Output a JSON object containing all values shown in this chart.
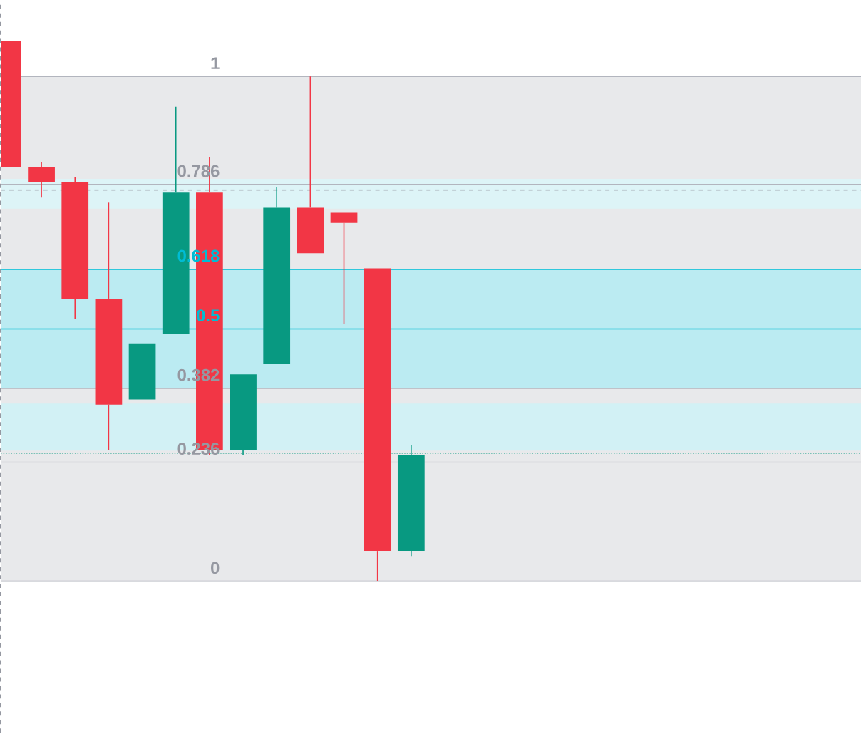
{
  "chart_data": {
    "type": "candlestick",
    "categories": [
      null,
      null,
      null,
      null,
      null,
      null,
      null,
      null,
      null,
      null,
      null,
      null,
      null
    ],
    "ohlc": [
      [
        1.07,
        1.07,
        0.82,
        0.82
      ],
      [
        0.82,
        0.83,
        0.76,
        0.79
      ],
      [
        0.79,
        0.8,
        0.52,
        0.56
      ],
      [
        0.56,
        0.75,
        0.26,
        0.35
      ],
      [
        0.36,
        0.47,
        0.36,
        0.47
      ],
      [
        0.49,
        0.94,
        0.49,
        0.77
      ],
      [
        0.77,
        0.84,
        0.25,
        0.26
      ],
      [
        0.26,
        0.41,
        0.25,
        0.41
      ],
      [
        0.43,
        0.78,
        0.43,
        0.74
      ],
      [
        0.74,
        1.0,
        0.65,
        0.65
      ],
      [
        0.73,
        0.73,
        0.51,
        0.71
      ],
      [
        0.62,
        0.62,
        0.0,
        0.06
      ],
      [
        0.06,
        0.27,
        0.05,
        0.25
      ]
    ],
    "colors": [
      "#f23645",
      "#f23645",
      "#f23645",
      "#f23645",
      "#089981",
      "#089981",
      "#f23645",
      "#089981",
      "#089981",
      "#f23645",
      "#f23645",
      "#f23645",
      "#089981"
    ],
    "ylim": [
      -0.3,
      1.15
    ],
    "yticks": [
      0,
      0.236,
      0.382,
      0.5,
      0.618,
      0.786,
      1
    ],
    "tick_labels": "y",
    "bands": [
      {
        "axis": "y",
        "from": 0,
        "to": 1,
        "color": "#e8e9eb"
      },
      {
        "axis": "y",
        "from": 0.382,
        "to": 0.618,
        "color": "#bbebf2"
      },
      {
        "axis": "y",
        "from": 0.738,
        "to": 0.797,
        "color": "#ddf4f7"
      },
      {
        "axis": "y",
        "from": 0.259,
        "to": 0.352,
        "color": "#d2f1f5"
      }
    ],
    "ref_lines": [
      {
        "axis": "y",
        "value": 1,
        "color": "#b2b5be"
      },
      {
        "axis": "y",
        "value": 0.786,
        "color": "#b2b5be"
      },
      {
        "axis": "y",
        "value": 0.618,
        "color": "#00bcd4"
      },
      {
        "axis": "y",
        "value": 0.5,
        "color": "#00bcd4"
      },
      {
        "axis": "y",
        "value": 0.382,
        "color": "#b2b5be"
      },
      {
        "axis": "y",
        "value": 0.236,
        "color": "#b2b5be"
      },
      {
        "axis": "y",
        "value": 0,
        "color": "#b2b5be"
      },
      {
        "axis": "y",
        "value": 0.775,
        "color": "#9598a1",
        "line_style": "dashed"
      },
      {
        "axis": "y",
        "value": 0.254,
        "color": "#089981",
        "line_style": "dotted"
      }
    ]
  }
}
